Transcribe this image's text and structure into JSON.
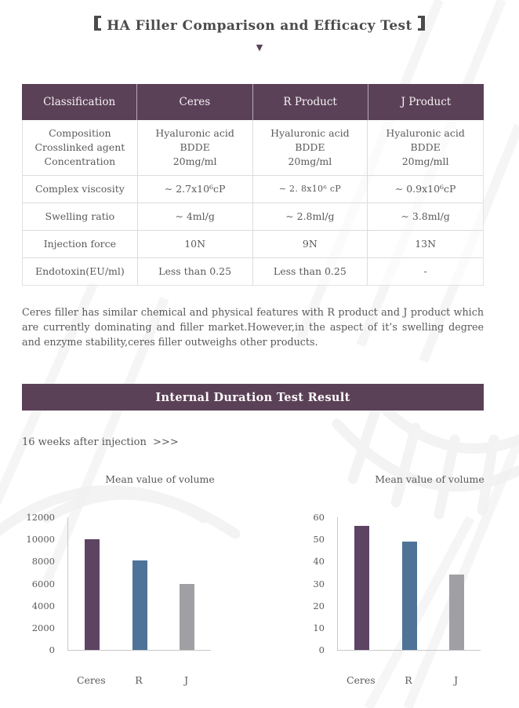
{
  "header": {
    "bracket_left": "【",
    "title": "HA Filler Comparison and Efficacy Test",
    "bracket_right": "】",
    "arrow_icon": "▼"
  },
  "comparison_table": {
    "columns": [
      "Classification",
      "Ceres",
      "R Product",
      "J Product"
    ],
    "composition_row": {
      "label_lines": [
        "Composition",
        "Crosslinked agent",
        "Concentration"
      ],
      "ceres_lines": [
        "Hyaluronic acid",
        "BDDE",
        "20mg/ml"
      ],
      "r_lines": [
        "Hyaluronic acid",
        "BDDE",
        "20mg/ml"
      ],
      "j_lines": [
        "Hyaluronic acid",
        "BDDE",
        "20mg/mll"
      ]
    },
    "rows": [
      {
        "label": "Complex viscosity",
        "ceres": "∼ 2.7x10⁶cP",
        "r": "∼ 2. 8x10⁶ cP",
        "j": "∼ 0.9x10⁶cP"
      },
      {
        "label": "Swelling ratio",
        "ceres": "∼ 4ml/g",
        "r": "∼ 2.8ml/g",
        "j": "∼ 3.8ml/g"
      },
      {
        "label": "Injection force",
        "ceres": "10N",
        "r": "9N",
        "j": "13N"
      },
      {
        "label": "Endotoxin(EU/ml)",
        "ceres": "Less than 0.25",
        "r": "Less than 0.25",
        "j": "-"
      }
    ]
  },
  "summary_paragraph": "Ceres filler has similar chemical and physical features with R product and J product which are currently dominating and filler market.However,in the aspect of it’s swelling degree and enzyme stability,ceres filler outweighs other products.",
  "section_banner": "Internal Duration Test Result",
  "timepoint_label": "16 weeks after injection  >>>",
  "colors": {
    "brand_purple": "#5b4157",
    "bar_ceres": "#5d4463",
    "bar_r": "#4e7398",
    "bar_j": "#a0a0a4",
    "axis_gray": "#c8c8c8",
    "text_gray": "#595959"
  },
  "chart_data": [
    {
      "type": "bar",
      "title": "Mean value of volume",
      "categories": [
        "Ceres",
        "R",
        "J"
      ],
      "values": [
        10000,
        8100,
        6000
      ],
      "colors": [
        "#5d4463",
        "#4e7398",
        "#a0a0a4"
      ],
      "xlabel": "",
      "ylabel": "",
      "ylim": [
        0,
        12000
      ],
      "yticks": [
        0,
        2000,
        4000,
        6000,
        8000,
        10000,
        12000
      ],
      "grid": false,
      "legend": false
    },
    {
      "type": "bar",
      "title": "Mean value of volume",
      "categories": [
        "Ceres",
        "R",
        "J"
      ],
      "values": [
        56,
        49,
        34
      ],
      "colors": [
        "#5d4463",
        "#4e7398",
        "#a0a0a4"
      ],
      "xlabel": "",
      "ylabel": "",
      "ylim": [
        0,
        60
      ],
      "yticks": [
        0,
        10,
        20,
        30,
        40,
        50,
        60
      ],
      "grid": false,
      "legend": false
    }
  ]
}
